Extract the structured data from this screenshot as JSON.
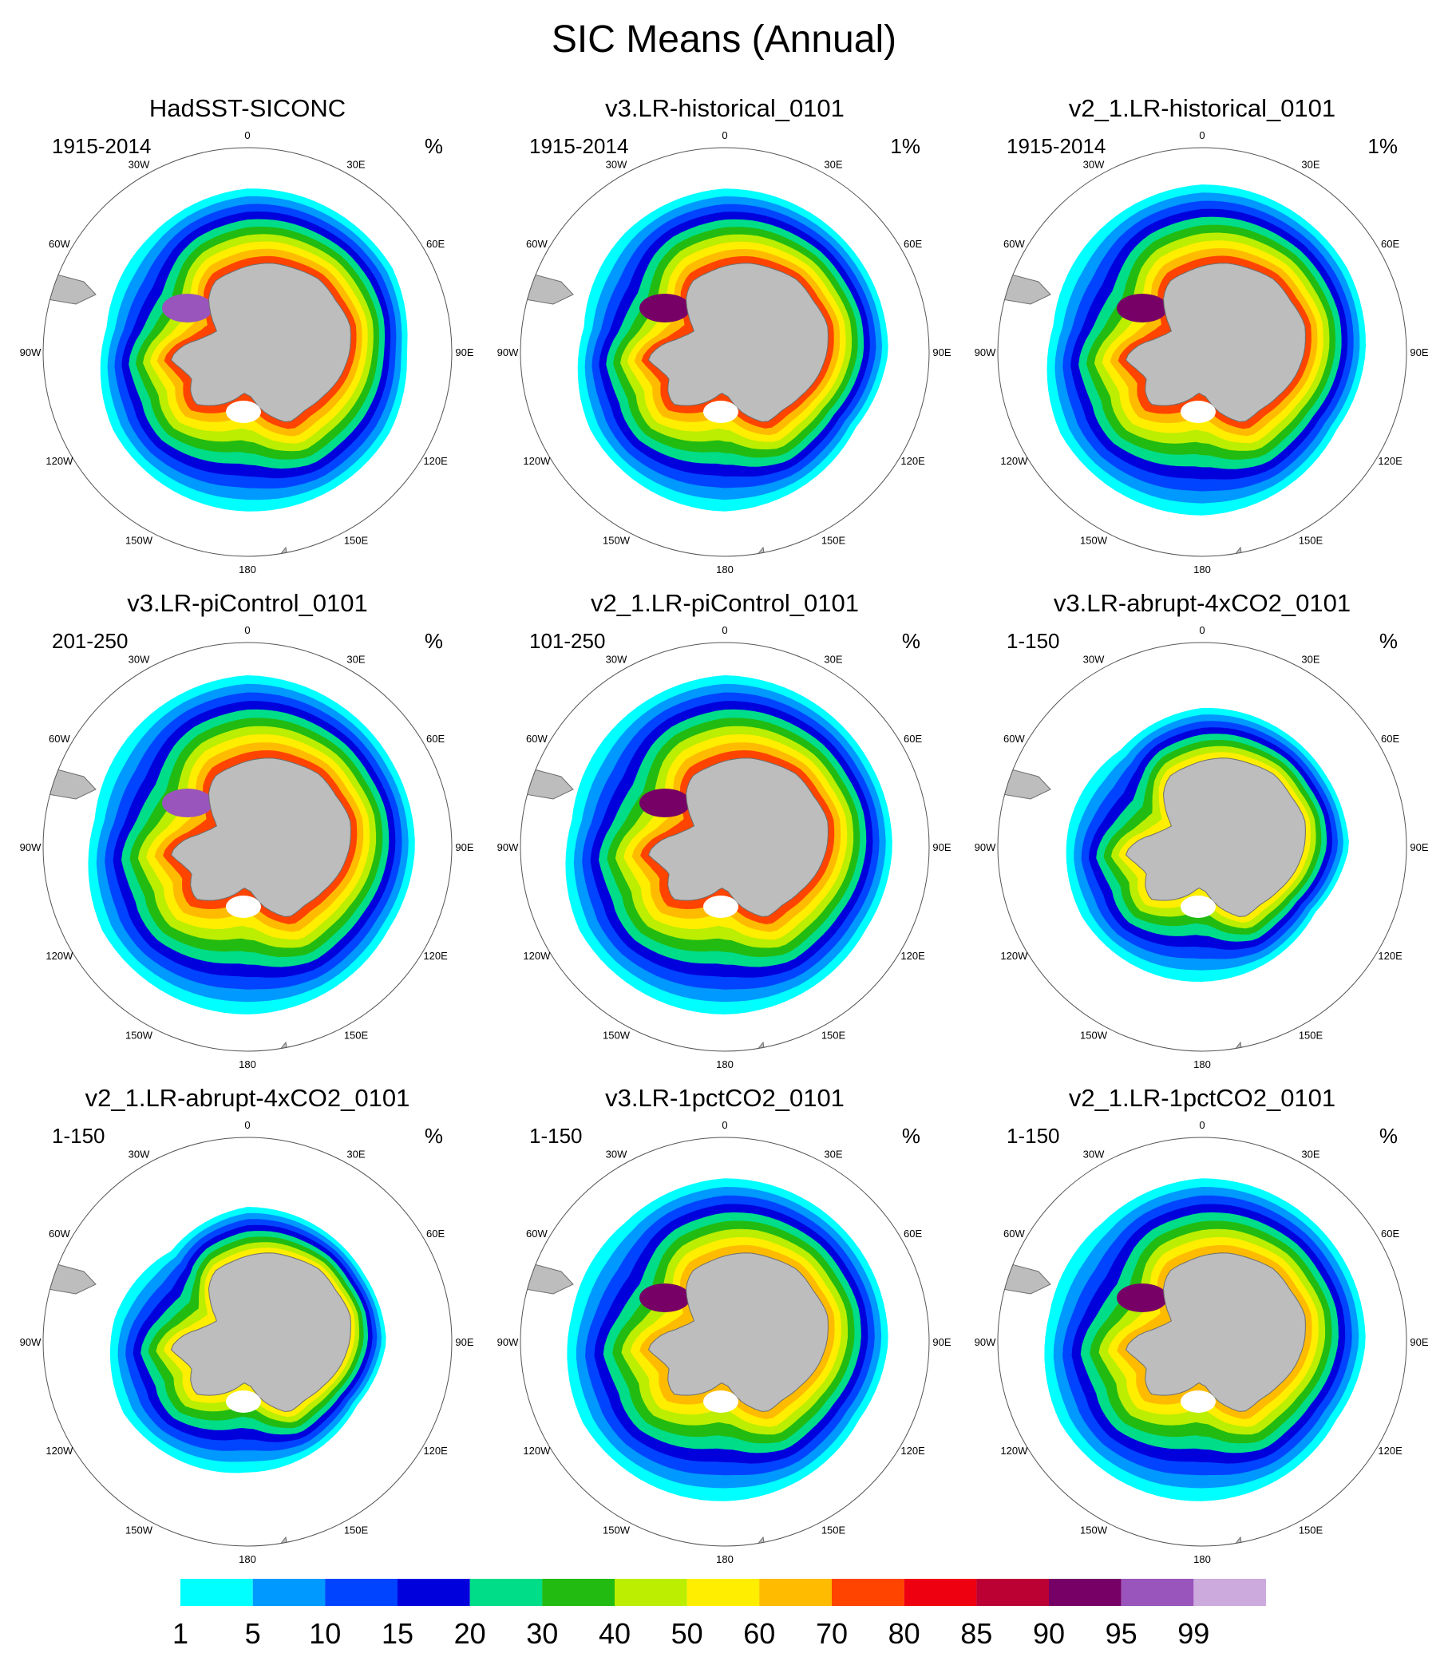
{
  "title": "SIC Means (Annual)",
  "longitude_labels": [
    "0",
    "30E",
    "60E",
    "90E",
    "120E",
    "150E",
    "180",
    "150W",
    "120W",
    "90W",
    "60W",
    "30W"
  ],
  "colorbar": {
    "labels": [
      "1",
      "5",
      "10",
      "15",
      "20",
      "30",
      "40",
      "50",
      "60",
      "70",
      "80",
      "85",
      "90",
      "95",
      "99"
    ],
    "colors": [
      "#00ffff",
      "#0099ff",
      "#0044ff",
      "#0000dd",
      "#00dd88",
      "#22bb11",
      "#bbee00",
      "#ffee00",
      "#ffbb00",
      "#ff4400",
      "#ee0011",
      "#bb0033",
      "#770066",
      "#9955bb",
      "#ccaadd"
    ]
  },
  "panels": [
    {
      "title": "HadSST-SICONC",
      "left": "1915-2014",
      "right": "%"
    },
    {
      "title": "v3.LR-historical_0101",
      "left": "1915-2014",
      "right": "1%"
    },
    {
      "title": "v2_1.LR-historical_0101",
      "left": "1915-2014",
      "right": "1%"
    },
    {
      "title": "v3.LR-piControl_0101",
      "left": "201-250",
      "right": "%"
    },
    {
      "title": "v2_1.LR-piControl_0101",
      "left": "101-250",
      "right": "%"
    },
    {
      "title": "v3.LR-abrupt-4xCO2_0101",
      "left": "1-150",
      "right": "%"
    },
    {
      "title": "v2_1.LR-abrupt-4xCO2_0101",
      "left": "1-150",
      "right": "%"
    },
    {
      "title": "v3.LR-1pctCO2_0101",
      "left": "1-150",
      "right": "%"
    },
    {
      "title": "v2_1.LR-1pctCO2_0101",
      "left": "1-150",
      "right": "%"
    }
  ]
}
